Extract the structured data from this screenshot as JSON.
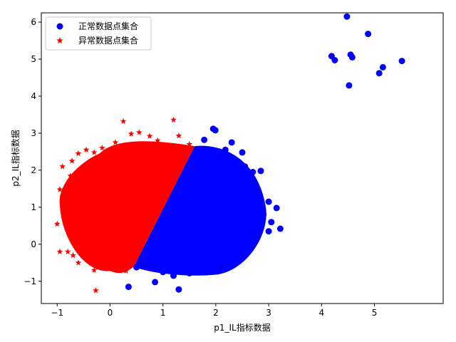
{
  "chart_data": {
    "type": "scatter",
    "xlabel": "p1_IL指标数据",
    "ylabel": "p2_IL指标数据",
    "xlim": [
      -1.3,
      6.3
    ],
    "ylim": [
      -1.6,
      6.25
    ],
    "xticks": [
      -1,
      0,
      1,
      2,
      3,
      4,
      5
    ],
    "xtick_labels": [
      "−1",
      "0",
      "1",
      "2",
      "3",
      "4",
      "5"
    ],
    "yticks": [
      -1,
      0,
      1,
      2,
      3,
      4,
      5,
      6
    ],
    "ytick_labels": [
      "−1",
      "0",
      "1",
      "2",
      "3",
      "4",
      "5",
      "6"
    ],
    "grid": false,
    "legend_position": "top-left",
    "series": [
      {
        "name": "正常数据点集合",
        "marker": "circle",
        "color": "#0000ff",
        "dense_region": {
          "left_boundary": [
            [
              0.45,
              -0.6
            ],
            [
              1.6,
              2.65
            ]
          ],
          "right_extent": [
            2.0,
            0.95,
            1.15,
            1.6
          ],
          "note_y_range": [
            -0.85,
            2.65
          ]
        },
        "points": [
          [
            4.48,
            6.15
          ],
          [
            4.88,
            5.68
          ],
          [
            5.52,
            4.95
          ],
          [
            5.16,
            4.78
          ],
          [
            5.09,
            4.62
          ],
          [
            4.55,
            5.12
          ],
          [
            4.58,
            5.05
          ],
          [
            4.25,
            4.97
          ],
          [
            4.19,
            5.08
          ],
          [
            4.52,
            4.29
          ],
          [
            1.95,
            3.12
          ],
          [
            1.99,
            3.08
          ],
          [
            1.78,
            2.82
          ],
          [
            2.18,
            2.55
          ],
          [
            2.3,
            2.75
          ],
          [
            2.5,
            2.48
          ],
          [
            2.55,
            2.1
          ],
          [
            2.7,
            1.95
          ],
          [
            2.85,
            1.98
          ],
          [
            3.0,
            1.15
          ],
          [
            3.15,
            0.98
          ],
          [
            3.05,
            0.6
          ],
          [
            3.0,
            0.35
          ],
          [
            3.22,
            0.42
          ],
          [
            2.82,
            0.42
          ],
          [
            2.65,
            0.08
          ],
          [
            2.48,
            -0.05
          ],
          [
            2.27,
            -0.3
          ],
          [
            1.85,
            -0.7
          ],
          [
            1.5,
            -0.78
          ],
          [
            1.2,
            -0.85
          ],
          [
            1.0,
            -0.75
          ],
          [
            0.85,
            -1.02
          ],
          [
            0.35,
            -1.15
          ],
          [
            1.3,
            -1.22
          ],
          [
            0.5,
            -0.62
          ],
          [
            0.7,
            -0.4
          ],
          [
            2.2,
            2.3
          ],
          [
            2.35,
            2.05
          ],
          [
            2.6,
            1.75
          ],
          [
            2.45,
            1.55
          ],
          [
            2.75,
            1.4
          ],
          [
            2.9,
            0.8
          ],
          [
            2.4,
            0.2
          ],
          [
            2.1,
            -0.15
          ]
        ]
      },
      {
        "name": "异常数据点集合",
        "marker": "star",
        "color": "#ff0000",
        "dense_region": {
          "right_boundary": [
            [
              0.45,
              -0.6
            ],
            [
              1.6,
              2.65
            ]
          ],
          "left_extent": [
            -0.55,
            1.05,
            1.15,
            1.6
          ]
        },
        "points": [
          [
            0.25,
            3.32
          ],
          [
            1.2,
            3.36
          ],
          [
            0.55,
            3.02
          ],
          [
            0.4,
            2.98
          ],
          [
            0.75,
            2.92
          ],
          [
            1.3,
            2.93
          ],
          [
            -0.3,
            2.48
          ],
          [
            -0.15,
            2.6
          ],
          [
            -0.6,
            2.45
          ],
          [
            -0.9,
            2.1
          ],
          [
            -0.72,
            2.25
          ],
          [
            -0.95,
            1.48
          ],
          [
            -0.9,
            1.1
          ],
          [
            -1.0,
            0.55
          ],
          [
            -0.85,
            0.65
          ],
          [
            -0.95,
            -0.2
          ],
          [
            -0.8,
            -0.2
          ],
          [
            -0.65,
            0.1
          ],
          [
            -0.6,
            -0.5
          ],
          [
            -0.7,
            -0.3
          ],
          [
            -0.3,
            -0.7
          ],
          [
            0.0,
            -0.6
          ],
          [
            0.2,
            -0.65
          ],
          [
            0.3,
            -0.72
          ],
          [
            -0.27,
            -1.25
          ],
          [
            0.1,
            2.75
          ],
          [
            -0.45,
            2.55
          ],
          [
            0.9,
            2.8
          ],
          [
            1.5,
            2.7
          ],
          [
            -0.75,
            1.85
          ]
        ]
      }
    ]
  }
}
